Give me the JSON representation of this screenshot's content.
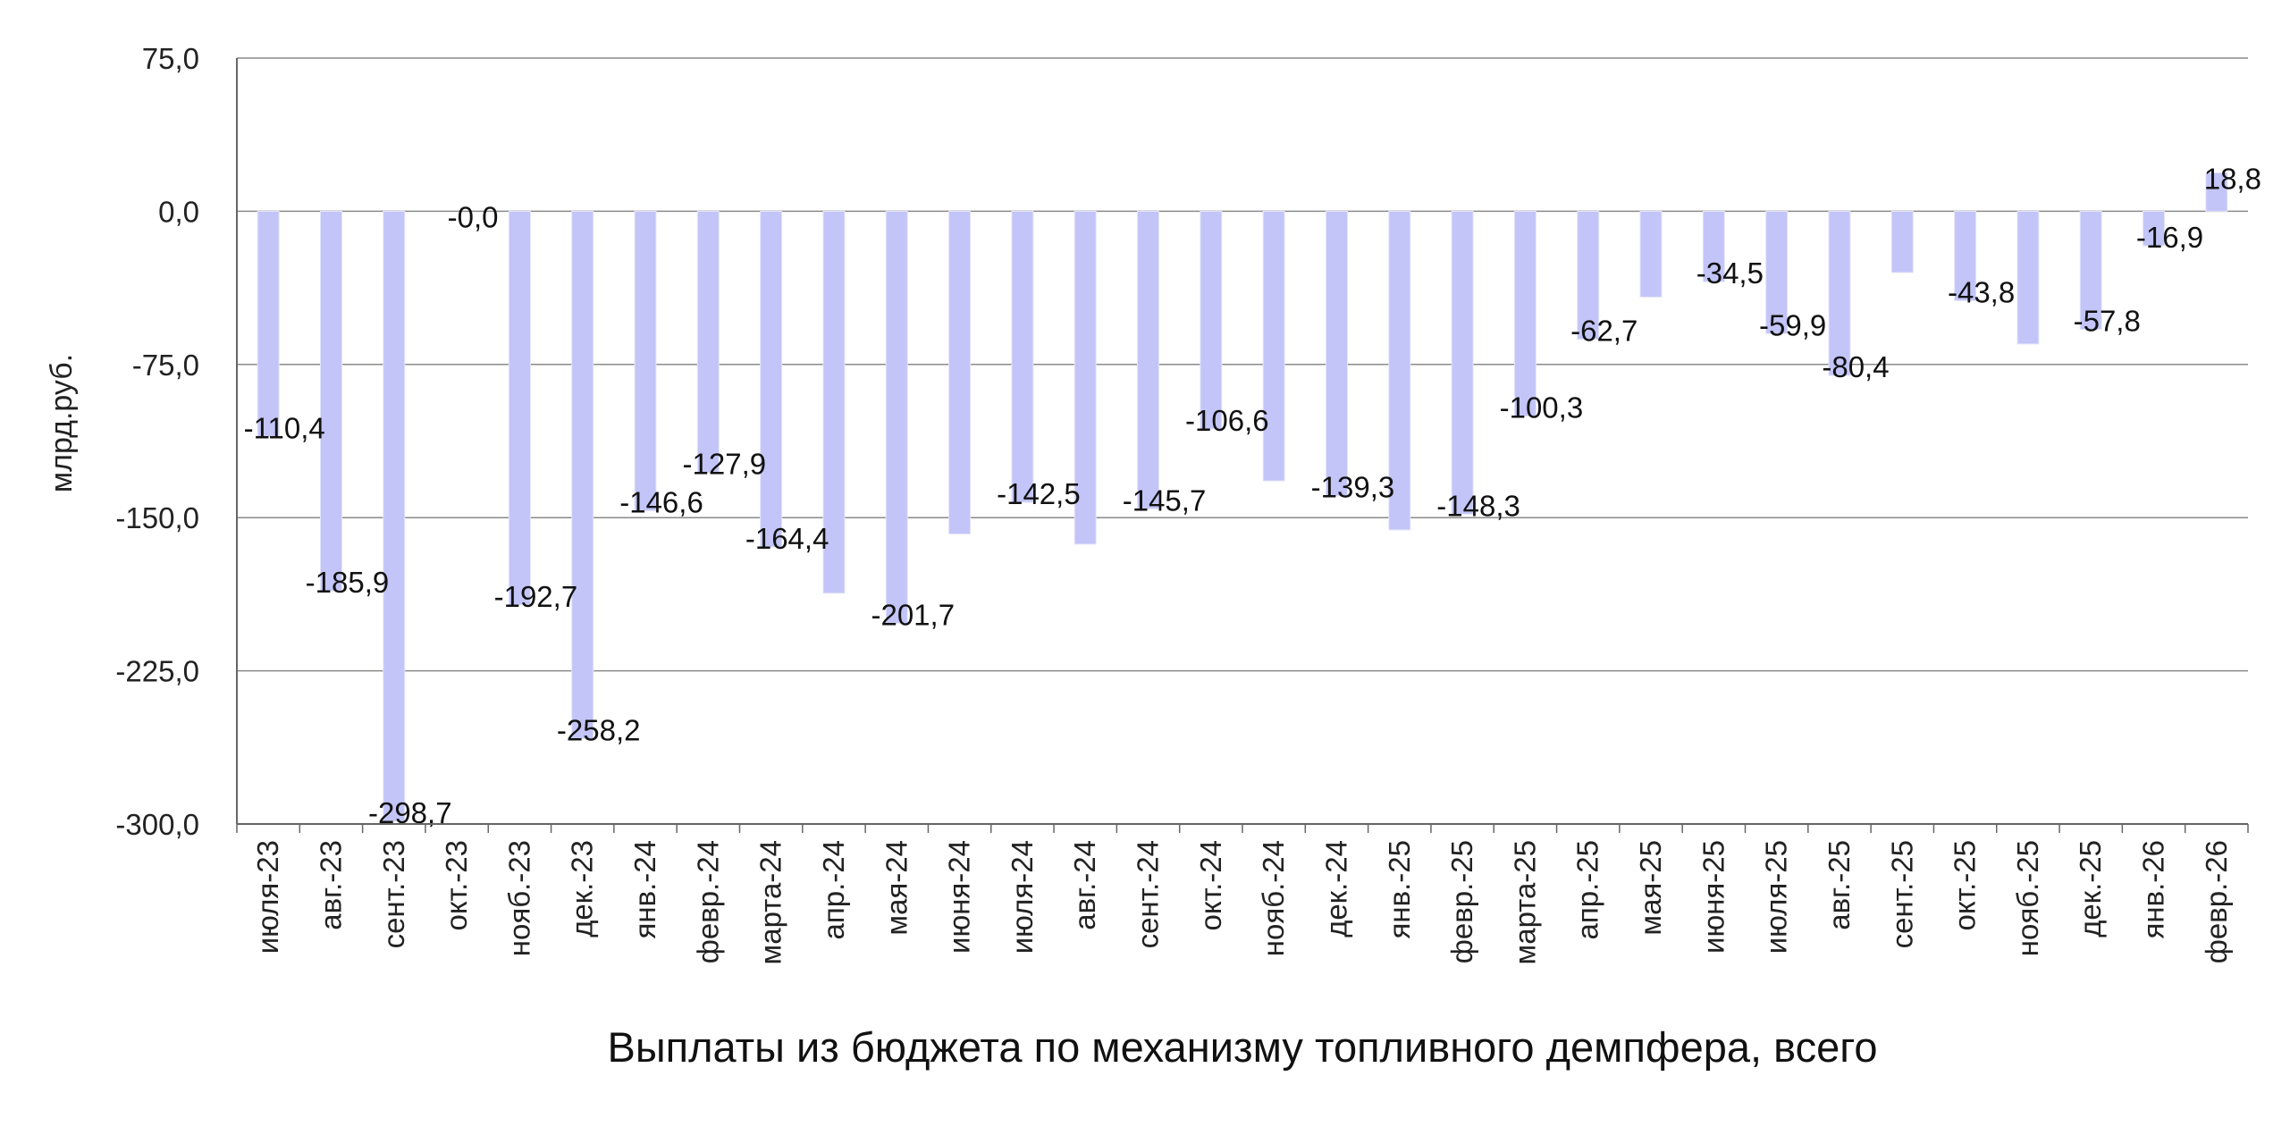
{
  "chart_data": {
    "type": "bar",
    "title": "",
    "caption": "Выплаты из бюджета по механизму топливного демпфера, всего",
    "xlabel": "",
    "ylabel": "млрд.руб.",
    "ylim": [
      -300,
      75
    ],
    "yticks": [
      75,
      0,
      -75,
      -150,
      -225,
      -300
    ],
    "ytick_labels": [
      "75,0",
      "0,0",
      "-75,0",
      "-150,0",
      "-225,0",
      "-300,0"
    ],
    "grid": true,
    "legend": "none",
    "bar_color": "#c3c5f8",
    "categories": [
      "июля-23",
      "авг.-23",
      "сент.-23",
      "окт.-23",
      "нояб.-23",
      "дек.-23",
      "янв.-24",
      "февр.-24",
      "марта-24",
      "апр.-24",
      "мая-24",
      "июня-24",
      "июля-24",
      "авг.-24",
      "сент.-24",
      "окт.-24",
      "нояб.-24",
      "дек.-24",
      "янв.-25",
      "февр.-25",
      "марта-25",
      "апр.-25",
      "мая-25",
      "июня-25",
      "июля-25",
      "авг.-25",
      "сент.-25",
      "окт.-25",
      "нояб.-25",
      "дек.-25",
      "янв.-26",
      "февр.-26"
    ],
    "values": [
      -110.4,
      -185.9,
      -298.7,
      -0.0,
      -192.7,
      -258.2,
      -146.6,
      -127.9,
      -164.4,
      -187.0,
      -201.7,
      -158.0,
      -142.5,
      -163.0,
      -145.7,
      -106.6,
      -132.0,
      -139.3,
      -156.0,
      -148.3,
      -100.3,
      -62.7,
      -42.0,
      -34.5,
      -59.9,
      -80.4,
      -30.0,
      -43.8,
      -65.0,
      -57.8,
      -16.9,
      18.8
    ],
    "data_labels": [
      "-110,4",
      "-185,9",
      "-298,7",
      "-0,0",
      "-192,7",
      "-258,2",
      "-146,6",
      "-127,9",
      "-164,4",
      "",
      "-201,7",
      "",
      "-142,5",
      "",
      "-145,7",
      "-106,6",
      "",
      "-139,3",
      "",
      "-148,3",
      "-100,3",
      "-62,7",
      "",
      "-34,5",
      "-59,9",
      "-80,4",
      "",
      "-43,8",
      "",
      "-57,8",
      "-16,9",
      "18,8"
    ]
  }
}
